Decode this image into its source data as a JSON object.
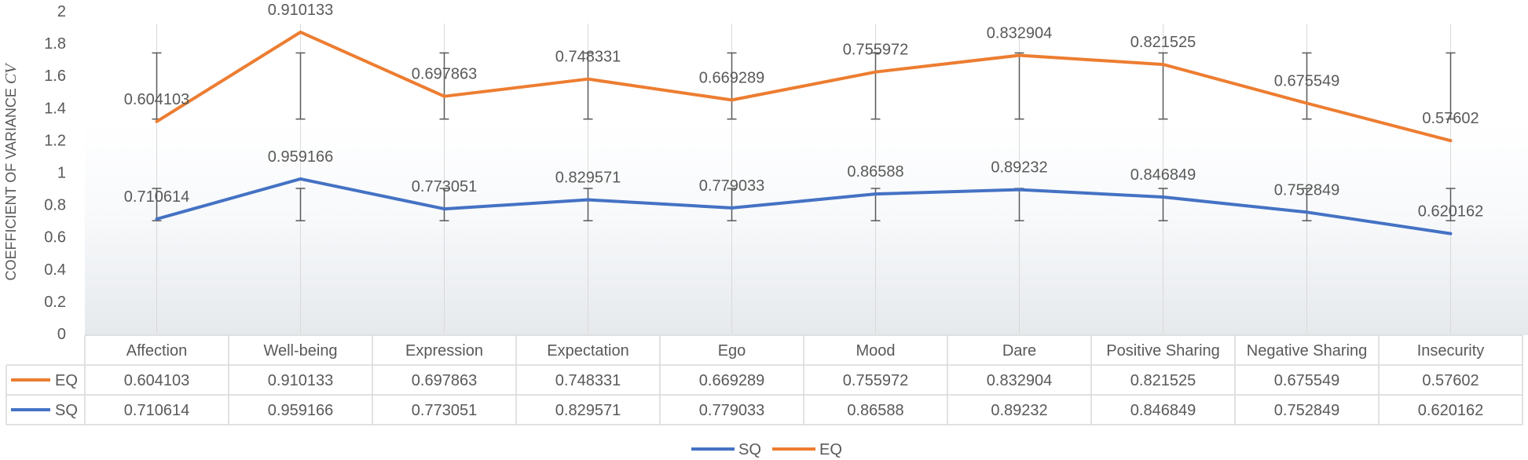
{
  "chart_data": {
    "type": "line",
    "title": "",
    "xlabel": "",
    "ylabel": "COEFFICIENT OF VARIANCE",
    "ylabel_var": "CV",
    "ylim": [
      0,
      2
    ],
    "yticks": [
      0,
      0.2,
      0.4,
      0.6,
      0.8,
      1,
      1.2,
      1.4,
      1.6,
      1.8,
      2
    ],
    "ytick_labels": [
      "0",
      "0.2",
      "0.4",
      "0.6",
      "0.8",
      "1",
      "1.2",
      "1.4",
      "1.6",
      "1.8",
      "2"
    ],
    "categories": [
      "Affection",
      "Well-being",
      "Expression",
      "Expectation",
      "Ego",
      "Mood",
      "Dare",
      "Positive Sharing",
      "Negative Sharing",
      "Insecurity"
    ],
    "series": [
      {
        "name": "SQ",
        "color": "#4472C4",
        "values": [
          0.710614,
          0.959166,
          0.773051,
          0.829571,
          0.779033,
          0.86588,
          0.89232,
          0.846849,
          0.752849,
          0.620162
        ],
        "labels": [
          "0.710614",
          "0.959166",
          "0.773051",
          "0.829571",
          "0.779033",
          "0.86588",
          "0.89232",
          "0.846849",
          "0.752849",
          "0.620162"
        ],
        "error_low": 0.7,
        "error_high": 0.9
      },
      {
        "name": "EQ",
        "color": "#ED7D31",
        "values": [
          1.314717,
          1.869299,
          1.470914,
          1.577902,
          1.448322,
          1.621852,
          1.725224,
          1.668374,
          1.428398,
          1.196182
        ],
        "labels": [
          "0.604103",
          "0.910133",
          "0.697863",
          "0.748331",
          "0.669289",
          "0.755972",
          "0.832904",
          "0.821525",
          "0.675549",
          "0.57602"
        ],
        "error_low": 1.33,
        "error_high": 1.74
      }
    ],
    "table_rows": [
      {
        "name": "EQ",
        "color": "#ED7D31",
        "cells": [
          "0.604103",
          "0.910133",
          "0.697863",
          "0.748331",
          "0.669289",
          "0.755972",
          "0.832904",
          "0.821525",
          "0.675549",
          "0.57602"
        ]
      },
      {
        "name": "SQ",
        "color": "#4472C4",
        "cells": [
          "0.710614",
          "0.959166",
          "0.773051",
          "0.829571",
          "0.779033",
          "0.86588",
          "0.89232",
          "0.846849",
          "0.752849",
          "0.620162"
        ]
      }
    ],
    "legend": {
      "position": "bottom",
      "entries": [
        {
          "name": "SQ",
          "color": "#4472C4"
        },
        {
          "name": "EQ",
          "color": "#ED7D31"
        }
      ]
    },
    "colors": {
      "text": "#595959",
      "grid": "#D9D9D9",
      "error_bar": "#595959"
    }
  }
}
